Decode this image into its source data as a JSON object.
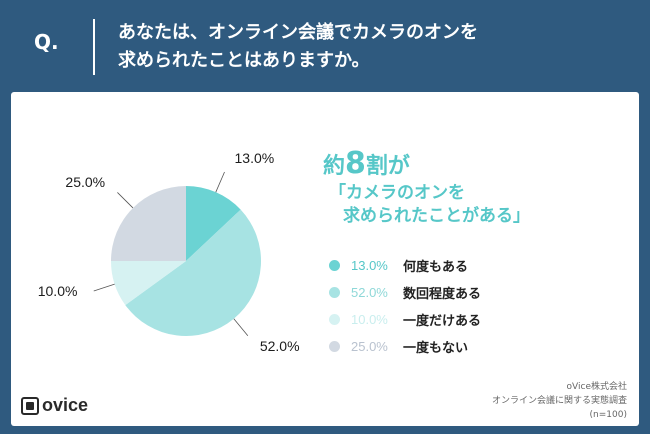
{
  "header": {
    "q_label": "Q.",
    "question": "あなたは、オンライン会議でカメラのオンを\n求められたことはありますか。"
  },
  "headline": {
    "prefix": "約",
    "big": "8",
    "suffix": "割が",
    "line2": "「カメラのオンを",
    "line3": "求められたことがある」"
  },
  "chart_data": {
    "type": "pie",
    "labels": [
      "何度もある",
      "数回程度ある",
      "一度だけある",
      "一度もない"
    ],
    "values": [
      13.0,
      52.0,
      10.0,
      25.0
    ],
    "value_labels": [
      "13.0%",
      "52.0%",
      "10.0%",
      "25.0%"
    ],
    "colors": [
      "#6bd3d3",
      "#a7e3e3",
      "#d6f2f2",
      "#d2d9e2"
    ],
    "legend_text_colors": [
      "#56c7c8",
      "#8fd8d8",
      "#c9eeee",
      "#b9c2cf"
    ],
    "start_angle": "top",
    "direction": "clockwise",
    "legend": "right"
  },
  "footer": {
    "logo_text": "ovice",
    "source_line1": "oVice株式会社",
    "source_line2": "オンライン会議に関する実態調査",
    "source_line3": "(n=100)"
  }
}
